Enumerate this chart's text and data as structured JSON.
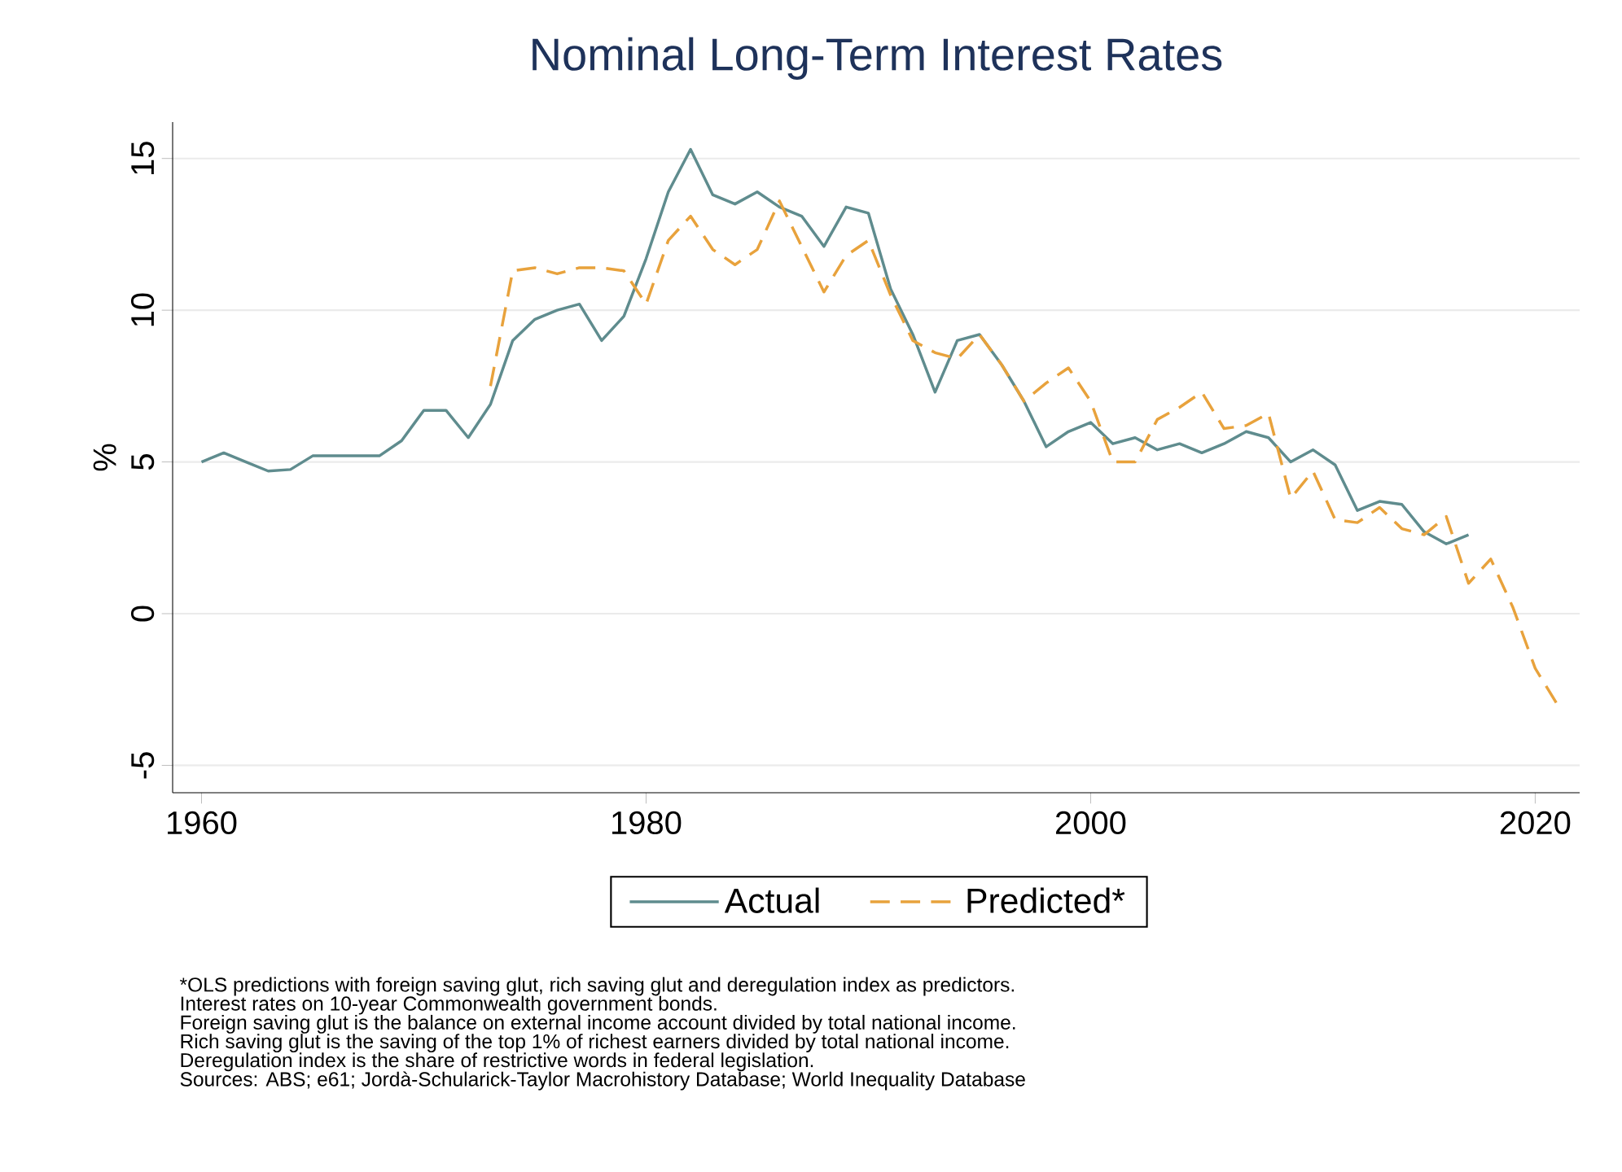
{
  "chart_data": {
    "type": "line",
    "title": "Nominal Long-Term Interest Rates",
    "ylabel": "%",
    "xlim": [
      1958.7,
      2022
    ],
    "ylim": [
      -5.9,
      16.2
    ],
    "xticks": [
      1960,
      1980,
      2000,
      2020
    ],
    "yticks": [
      -5,
      0,
      5,
      10,
      15
    ],
    "grid": "y",
    "legend": "bottom",
    "series": [
      {
        "name": "Actual",
        "color": "#5f8c8e",
        "line_style": "solid",
        "x": [
          1960,
          1961,
          1962,
          1963,
          1964,
          1965,
          1966,
          1967,
          1968,
          1969,
          1970,
          1971,
          1972,
          1973,
          1974,
          1975,
          1976,
          1977,
          1978,
          1979,
          1980,
          1981,
          1982,
          1983,
          1984,
          1985,
          1986,
          1987,
          1988,
          1989,
          1990,
          1991,
          1992,
          1993,
          1994,
          1995,
          1996,
          1997,
          1998,
          1999,
          2000,
          2001,
          2002,
          2003,
          2004,
          2005,
          2006,
          2007,
          2008,
          2009,
          2010,
          2011,
          2012,
          2013,
          2014,
          2015,
          2016,
          2017
        ],
        "values": [
          5.0,
          5.3,
          5.0,
          4.7,
          4.75,
          5.2,
          5.2,
          5.2,
          5.2,
          5.7,
          6.7,
          6.7,
          5.8,
          6.9,
          9.0,
          9.7,
          10.0,
          10.2,
          9.0,
          9.8,
          11.7,
          13.9,
          15.3,
          13.8,
          13.5,
          13.9,
          13.4,
          13.1,
          12.1,
          13.4,
          13.2,
          10.7,
          9.2,
          7.3,
          9.0,
          9.2,
          8.2,
          7.0,
          5.5,
          6.0,
          6.3,
          5.6,
          5.8,
          5.4,
          5.6,
          5.3,
          5.6,
          6.0,
          5.8,
          5.0,
          5.4,
          4.9,
          3.4,
          3.7,
          3.6,
          2.7,
          2.3,
          2.6
        ]
      },
      {
        "name": "Predicted*",
        "color": "#e8a23c",
        "line_style": "dashed",
        "x": [
          1973,
          1974,
          1975,
          1976,
          1977,
          1978,
          1979,
          1980,
          1981,
          1982,
          1983,
          1984,
          1985,
          1986,
          1987,
          1988,
          1989,
          1990,
          1991,
          1992,
          1993,
          1994,
          1995,
          1996,
          1997,
          1998,
          1999,
          2000,
          2001,
          2002,
          2003,
          2004,
          2005,
          2006,
          2007,
          2008,
          2009,
          2010,
          2011,
          2012,
          2013,
          2014,
          2015,
          2016,
          2017,
          2018,
          2019,
          2020,
          2021
        ],
        "values": [
          7.5,
          11.3,
          11.4,
          11.2,
          11.4,
          11.4,
          11.3,
          10.2,
          12.3,
          13.1,
          12.0,
          11.5,
          12.0,
          13.6,
          12.1,
          10.6,
          11.8,
          12.3,
          10.5,
          9.0,
          8.6,
          8.4,
          9.2,
          8.2,
          7.0,
          7.6,
          8.1,
          7.0,
          5.0,
          5.0,
          6.4,
          6.8,
          7.3,
          6.1,
          6.2,
          6.6,
          3.8,
          4.7,
          3.1,
          3.0,
          3.5,
          2.8,
          2.6,
          3.2,
          1.0,
          1.8,
          0.2,
          -1.8,
          -3.0
        ]
      }
    ],
    "annotations": [
      "*OLS predictions with foreign saving glut, rich saving glut and deregulation index as predictors.",
      "Interest rates on 10-year Commonwealth government bonds.",
      "Foreign saving glut is the balance on external income account divided by total national income.",
      "Rich saving glut is the saving of the top 1% of richest earners divided by total national income.",
      "Deregulation index is the share of restrictive words in federal legislation.",
      "Sources: ABS; e61; Jordà-Schularick-Taylor Macrohistory Database; World Inequality Database"
    ]
  }
}
